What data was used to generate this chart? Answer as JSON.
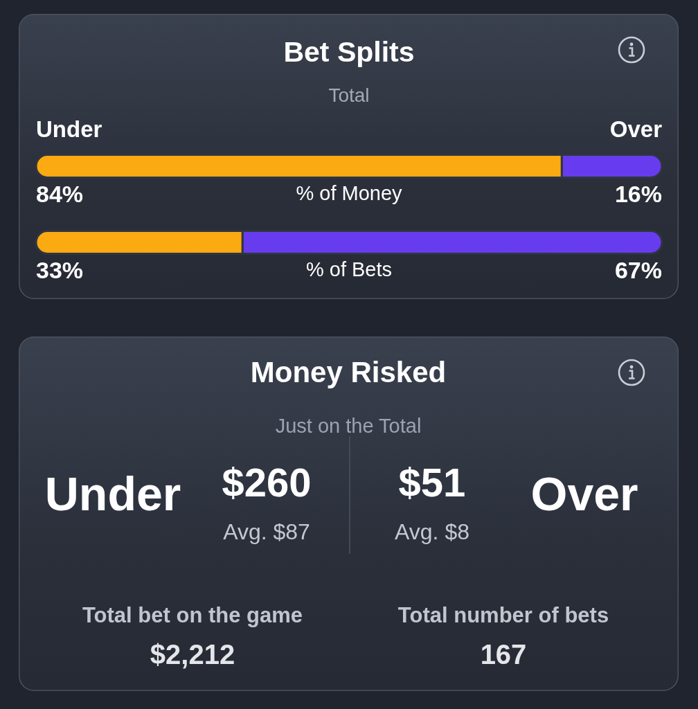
{
  "chart_data": [
    {
      "type": "bar",
      "orientation": "horizontal",
      "stacked": true,
      "title": "Bet Splits",
      "subtitle": "Total",
      "categories": [
        "% of Money",
        "% of Bets"
      ],
      "xlim": [
        0,
        100
      ],
      "tick_labels": "y",
      "legend": false,
      "series": [
        {
          "name": "Under",
          "color": "#fcaa12",
          "values": [
            84,
            33
          ],
          "value_labels": [
            "84%",
            "33%"
          ]
        },
        {
          "name": "Over",
          "color": "#673cef",
          "values": [
            16,
            67
          ],
          "value_labels": [
            "16%",
            "67%"
          ]
        }
      ]
    },
    {
      "type": "other",
      "title": "Money Risked",
      "subtitle": "Just on the Total",
      "annotations": [
        "Under",
        "$260",
        "Avg. $87",
        "$51",
        "Avg. $8",
        "Over",
        "Total bet on the game",
        "$2,212",
        "Total number of bets",
        "167"
      ]
    }
  ]
}
